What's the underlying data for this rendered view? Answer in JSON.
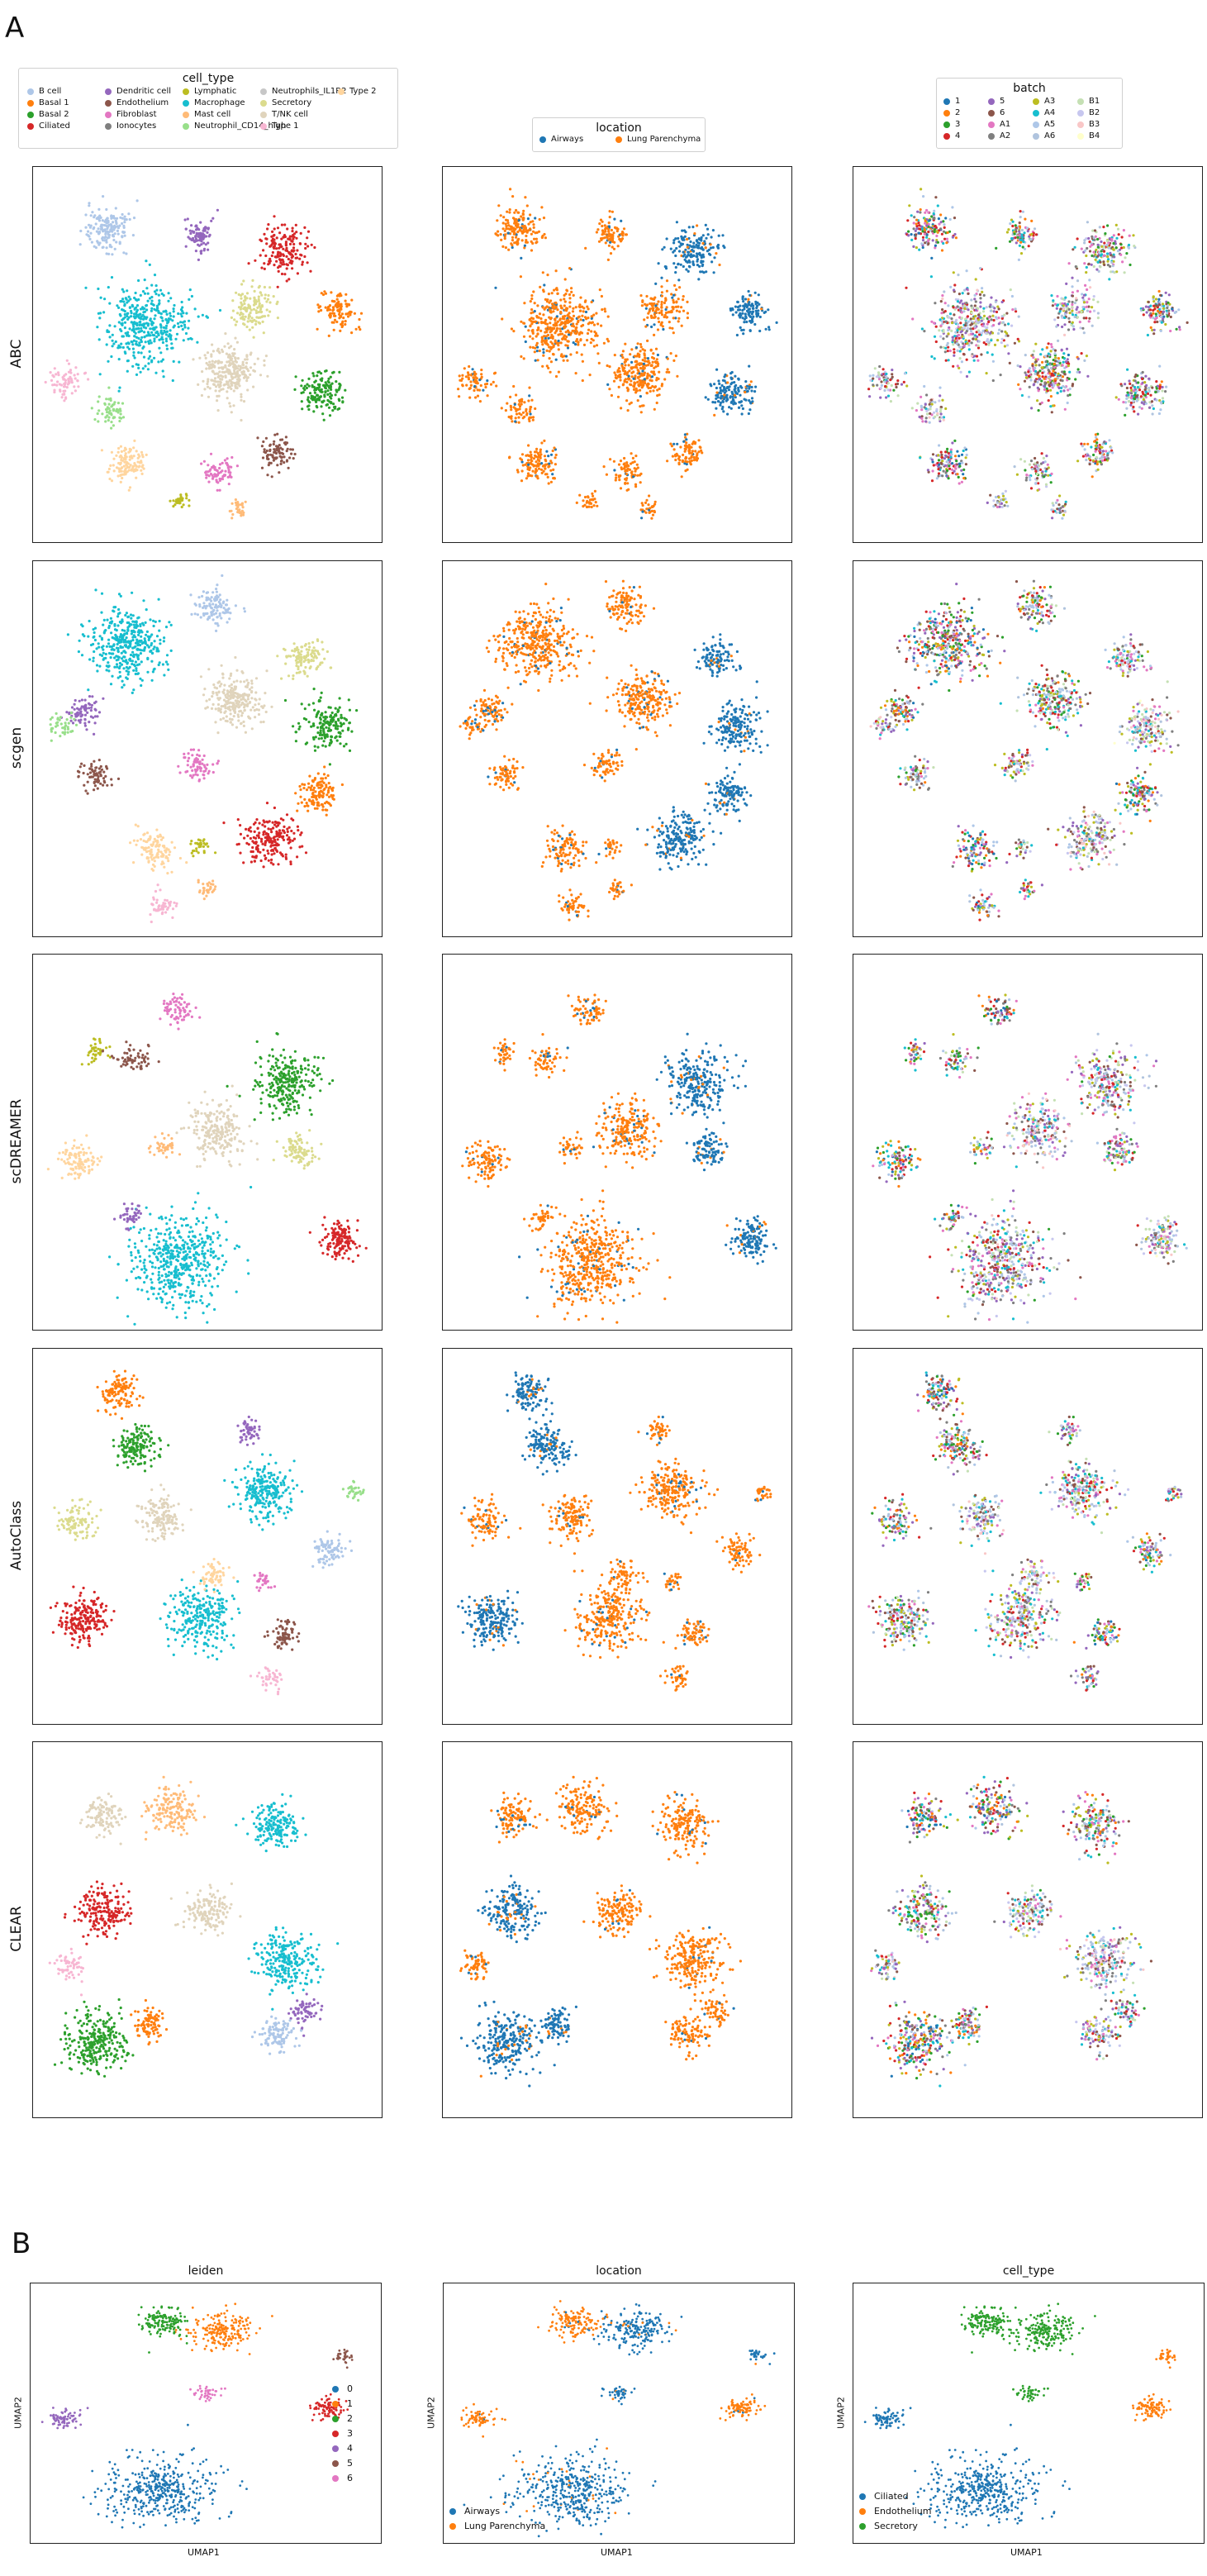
{
  "figure": {
    "panel_a_letter": "A",
    "panel_b_letter": "B"
  },
  "palettes": {
    "cell_type": {
      "B cell": "#aec7e8",
      "Basal 1": "#ff7f0e",
      "Basal 2": "#2ca02c",
      "Ciliated": "#d62728",
      "Dendritic cell": "#9467bd",
      "Endothelium": "#8c564b",
      "Fibroblast": "#e377c2",
      "Ionocytes": "#7f7f7f",
      "Lymphatic": "#bcbd22",
      "Macrophage": "#17becf",
      "Mast cell": "#ffbb78",
      "Neutrophil_CD14_high": "#98df8a",
      "Neutrophils_IL1R2": "#c7c7c7",
      "Secretory": "#dbdb8d",
      "T/NK cell": "#e0d4bc",
      "Type 1": "#f7b6d2",
      "Type 2": "#ffd59e"
    },
    "location": {
      "Airways": "#1f77b4",
      "Lung Parenchyma": "#ff7f0e"
    },
    "batch": {
      "1": "#1f77b4",
      "2": "#ff7f0e",
      "3": "#2ca02c",
      "4": "#d62728",
      "5": "#9467bd",
      "6": "#8c564b",
      "A1": "#e377c2",
      "A2": "#7f7f7f",
      "A3": "#bcbd22",
      "A4": "#17becf",
      "A5": "#aec7e8",
      "A6": "#b0c4de",
      "B1": "#c5e0b4",
      "B2": "#c7c7ef",
      "B3": "#f9c7c7",
      "B4": "#ffffcc"
    }
  },
  "legends": {
    "cell_type": {
      "title": "cell_type",
      "items": [
        "B cell",
        "Basal 1",
        "Basal 2",
        "Ciliated",
        "Dendritic cell",
        "Endothelium",
        "Fibroblast",
        "Ionocytes",
        "Lymphatic",
        "Macrophage",
        "Mast cell",
        "Neutrophil_CD14_high",
        "Neutrophils_IL1R2",
        "Secretory",
        "T/NK cell",
        "Type 1",
        "Type 2"
      ]
    },
    "location": {
      "title": "location",
      "items": [
        "Airways",
        "Lung Parenchyma"
      ]
    },
    "batch": {
      "title": "batch",
      "items": [
        "1",
        "2",
        "3",
        "4",
        "5",
        "6",
        "A1",
        "A2",
        "A3",
        "A4",
        "A5",
        "A6",
        "B1",
        "B2",
        "B3",
        "B4"
      ]
    }
  },
  "row_labels": [
    "ABC",
    "scgen",
    "scDREAMER",
    "AutoClass",
    "CLEAR"
  ],
  "panel_b": {
    "titles": [
      "leiden",
      "location",
      "cell_type"
    ],
    "xlabel": "UMAP1",
    "ylabel": "UMAP2",
    "leiden_legend": [
      "0",
      "1",
      "2",
      "3",
      "4",
      "5",
      "6"
    ],
    "leiden_colors": [
      "#1f77b4",
      "#ff7f0e",
      "#2ca02c",
      "#d62728",
      "#9467bd",
      "#8c564b",
      "#e377c2"
    ],
    "location_legend": [
      "Airways",
      "Lung Parenchyma"
    ],
    "location_colors": [
      "#1f77b4",
      "#ff7f0e"
    ],
    "celltype_legend": [
      "Ciliated",
      "Endothelium",
      "Secretory"
    ],
    "celltype_colors": [
      "#1f77b4",
      "#ff7f0e",
      "#2ca02c"
    ]
  },
  "chart_data": [
    {
      "type": "scatter",
      "title": "",
      "description_panel": "A",
      "grid": false,
      "rows": [
        "ABC",
        "scgen",
        "scDREAMER",
        "AutoClass",
        "CLEAR"
      ],
      "columns": [
        "cell_type",
        "location",
        "batch"
      ],
      "series": [
        {
          "name": "ABC",
          "clusters": [
            {
              "cell_type": "B cell",
              "location": "Lung Parenchyma",
              "x": 0.22,
              "y": 0.84,
              "r": 0.07,
              "n": 160
            },
            {
              "cell_type": "Dendritic cell",
              "location": "Lung Parenchyma",
              "x": 0.48,
              "y": 0.82,
              "r": 0.05,
              "n": 90
            },
            {
              "cell_type": "Ciliated",
              "location": "Airways",
              "x": 0.72,
              "y": 0.78,
              "r": 0.08,
              "n": 170
            },
            {
              "cell_type": "Macrophage",
              "location": "Lung Parenchyma",
              "x": 0.33,
              "y": 0.58,
              "r": 0.13,
              "n": 420
            },
            {
              "cell_type": "Secretory",
              "location": "Lung Parenchyma",
              "x": 0.63,
              "y": 0.62,
              "r": 0.07,
              "n": 130
            },
            {
              "cell_type": "Basal 1",
              "location": "Airways",
              "x": 0.88,
              "y": 0.62,
              "r": 0.06,
              "n": 110
            },
            {
              "cell_type": "T/NK cell",
              "location": "Lung Parenchyma",
              "x": 0.56,
              "y": 0.45,
              "r": 0.09,
              "n": 260
            },
            {
              "cell_type": "Basal 2",
              "location": "Airways",
              "x": 0.83,
              "y": 0.4,
              "r": 0.07,
              "n": 150
            },
            {
              "cell_type": "Type 1",
              "location": "Lung Parenchyma",
              "x": 0.09,
              "y": 0.43,
              "r": 0.05,
              "n": 70
            },
            {
              "cell_type": "Neutrophil_CD14_high",
              "location": "Lung Parenchyma",
              "x": 0.22,
              "y": 0.35,
              "r": 0.05,
              "n": 60
            },
            {
              "cell_type": "Type 2",
              "location": "Lung Parenchyma",
              "x": 0.27,
              "y": 0.21,
              "r": 0.06,
              "n": 120
            },
            {
              "cell_type": "Endothelium",
              "location": "Lung Parenchyma",
              "x": 0.7,
              "y": 0.24,
              "r": 0.05,
              "n": 90
            },
            {
              "cell_type": "Fibroblast",
              "location": "Lung Parenchyma",
              "x": 0.53,
              "y": 0.19,
              "r": 0.05,
              "n": 70
            },
            {
              "cell_type": "Lymphatic",
              "location": "Lung Parenchyma",
              "x": 0.42,
              "y": 0.11,
              "r": 0.03,
              "n": 30
            },
            {
              "cell_type": "Mast cell",
              "location": "Lung Parenchyma",
              "x": 0.59,
              "y": 0.09,
              "r": 0.03,
              "n": 30
            }
          ]
        },
        {
          "name": "scgen",
          "clusters": [
            {
              "cell_type": "Macrophage",
              "location": "Lung Parenchyma",
              "x": 0.27,
              "y": 0.78,
              "r": 0.12,
              "n": 380
            },
            {
              "cell_type": "B cell",
              "location": "Lung Parenchyma",
              "x": 0.52,
              "y": 0.88,
              "r": 0.06,
              "n": 110
            },
            {
              "cell_type": "T/NK cell",
              "location": "Lung Parenchyma",
              "x": 0.58,
              "y": 0.63,
              "r": 0.09,
              "n": 240
            },
            {
              "cell_type": "Secretory",
              "location": "Airways",
              "x": 0.78,
              "y": 0.74,
              "r": 0.06,
              "n": 110
            },
            {
              "cell_type": "Basal 2",
              "location": "Airways",
              "x": 0.84,
              "y": 0.56,
              "r": 0.08,
              "n": 170
            },
            {
              "cell_type": "Basal 1",
              "location": "Airways",
              "x": 0.82,
              "y": 0.38,
              "r": 0.06,
              "n": 120
            },
            {
              "cell_type": "Dendritic cell",
              "location": "Lung Parenchyma",
              "x": 0.14,
              "y": 0.6,
              "r": 0.05,
              "n": 80
            },
            {
              "cell_type": "Endothelium",
              "location": "Lung Parenchyma",
              "x": 0.18,
              "y": 0.43,
              "r": 0.05,
              "n": 70
            },
            {
              "cell_type": "Fibroblast",
              "location": "Lung Parenchyma",
              "x": 0.47,
              "y": 0.46,
              "r": 0.05,
              "n": 70
            },
            {
              "cell_type": "Ciliated",
              "location": "Airways",
              "x": 0.68,
              "y": 0.26,
              "r": 0.09,
              "n": 200
            },
            {
              "cell_type": "Type 2",
              "location": "Lung Parenchyma",
              "x": 0.35,
              "y": 0.23,
              "r": 0.06,
              "n": 110
            },
            {
              "cell_type": "Type 1",
              "location": "Lung Parenchyma",
              "x": 0.37,
              "y": 0.08,
              "r": 0.04,
              "n": 50
            },
            {
              "cell_type": "Mast cell",
              "location": "Lung Parenchyma",
              "x": 0.5,
              "y": 0.13,
              "r": 0.03,
              "n": 30
            },
            {
              "cell_type": "Lymphatic",
              "location": "Lung Parenchyma",
              "x": 0.48,
              "y": 0.24,
              "r": 0.03,
              "n": 30
            },
            {
              "cell_type": "Neutrophil_CD14_high",
              "location": "Lung Parenchyma",
              "x": 0.08,
              "y": 0.56,
              "r": 0.04,
              "n": 40
            }
          ]
        },
        {
          "name": "scDREAMER",
          "clusters": [
            {
              "cell_type": "Fibroblast",
              "location": "Lung Parenchyma",
              "x": 0.42,
              "y": 0.85,
              "r": 0.05,
              "n": 70
            },
            {
              "cell_type": "Lymphatic",
              "location": "Lung Parenchyma",
              "x": 0.18,
              "y": 0.74,
              "r": 0.04,
              "n": 40
            },
            {
              "cell_type": "Endothelium",
              "location": "Lung Parenchyma",
              "x": 0.29,
              "y": 0.72,
              "r": 0.05,
              "n": 60
            },
            {
              "cell_type": "Basal 2",
              "location": "Airways",
              "x": 0.73,
              "y": 0.66,
              "r": 0.1,
              "n": 260
            },
            {
              "cell_type": "T/NK cell",
              "location": "Lung Parenchyma",
              "x": 0.53,
              "y": 0.53,
              "r": 0.09,
              "n": 220
            },
            {
              "cell_type": "Type 2",
              "location": "Lung Parenchyma",
              "x": 0.13,
              "y": 0.45,
              "r": 0.06,
              "n": 110
            },
            {
              "cell_type": "Mast cell",
              "location": "Lung Parenchyma",
              "x": 0.37,
              "y": 0.48,
              "r": 0.04,
              "n": 40
            },
            {
              "cell_type": "Secretory",
              "location": "Airways",
              "x": 0.76,
              "y": 0.48,
              "r": 0.06,
              "n": 90
            },
            {
              "cell_type": "Macrophage",
              "location": "Lung Parenchyma",
              "x": 0.42,
              "y": 0.18,
              "r": 0.15,
              "n": 480
            },
            {
              "cell_type": "Ciliated",
              "location": "Airways",
              "x": 0.88,
              "y": 0.24,
              "r": 0.06,
              "n": 140
            },
            {
              "cell_type": "Dendritic cell",
              "location": "Lung Parenchyma",
              "x": 0.28,
              "y": 0.3,
              "r": 0.04,
              "n": 40
            }
          ]
        },
        {
          "name": "AutoClass",
          "clusters": [
            {
              "cell_type": "Basal 1",
              "location": "Airways",
              "x": 0.25,
              "y": 0.88,
              "r": 0.06,
              "n": 120
            },
            {
              "cell_type": "Basal 2",
              "location": "Airways",
              "x": 0.3,
              "y": 0.74,
              "r": 0.07,
              "n": 150
            },
            {
              "cell_type": "Dendritic cell",
              "location": "Lung Parenchyma",
              "x": 0.62,
              "y": 0.78,
              "r": 0.04,
              "n": 50
            },
            {
              "cell_type": "Macrophage",
              "location": "Lung Parenchyma",
              "x": 0.66,
              "y": 0.62,
              "r": 0.09,
              "n": 240
            },
            {
              "cell_type": "T/NK cell",
              "location": "Lung Parenchyma",
              "x": 0.37,
              "y": 0.55,
              "r": 0.07,
              "n": 140
            },
            {
              "cell_type": "B cell",
              "location": "Lung Parenchyma",
              "x": 0.85,
              "y": 0.46,
              "r": 0.05,
              "n": 80
            },
            {
              "cell_type": "Secretory",
              "location": "Lung Parenchyma",
              "x": 0.12,
              "y": 0.54,
              "r": 0.06,
              "n": 90
            },
            {
              "cell_type": "Ciliated",
              "location": "Airways",
              "x": 0.14,
              "y": 0.28,
              "r": 0.08,
              "n": 200
            },
            {
              "cell_type": "Macrophage",
              "location": "Lung Parenchyma",
              "x": 0.48,
              "y": 0.28,
              "r": 0.1,
              "n": 260
            },
            {
              "cell_type": "Type 2",
              "location": "Lung Parenchyma",
              "x": 0.52,
              "y": 0.4,
              "r": 0.05,
              "n": 60
            },
            {
              "cell_type": "Endothelium",
              "location": "Lung Parenchyma",
              "x": 0.72,
              "y": 0.24,
              "r": 0.05,
              "n": 70
            },
            {
              "cell_type": "Type 1",
              "location": "Lung Parenchyma",
              "x": 0.68,
              "y": 0.12,
              "r": 0.04,
              "n": 40
            },
            {
              "cell_type": "Fibroblast",
              "location": "Lung Parenchyma",
              "x": 0.66,
              "y": 0.38,
              "r": 0.03,
              "n": 30
            },
            {
              "cell_type": "Neutrophil_CD14_high",
              "location": "Lung Parenchyma",
              "x": 0.92,
              "y": 0.62,
              "r": 0.03,
              "n": 30
            }
          ]
        },
        {
          "name": "CLEAR",
          "clusters": [
            {
              "cell_type": "Mast cell",
              "location": "Lung Parenchyma",
              "x": 0.4,
              "y": 0.82,
              "r": 0.08,
              "n": 160
            },
            {
              "cell_type": "Macrophage",
              "location": "Lung Parenchyma",
              "x": 0.7,
              "y": 0.78,
              "r": 0.08,
              "n": 170
            },
            {
              "cell_type": "Ciliated",
              "location": "Airways",
              "x": 0.2,
              "y": 0.55,
              "r": 0.08,
              "n": 190
            },
            {
              "cell_type": "T/NK cell",
              "location": "Lung Parenchyma",
              "x": 0.5,
              "y": 0.55,
              "r": 0.07,
              "n": 150
            },
            {
              "cell_type": "Macrophage",
              "location": "Lung Parenchyma",
              "x": 0.72,
              "y": 0.42,
              "r": 0.1,
              "n": 240
            },
            {
              "cell_type": "Basal 2",
              "location": "Airways",
              "x": 0.18,
              "y": 0.2,
              "r": 0.1,
              "n": 260
            },
            {
              "cell_type": "Basal 1",
              "location": "Airways",
              "x": 0.33,
              "y": 0.25,
              "r": 0.05,
              "n": 90
            },
            {
              "cell_type": "Dendritic cell",
              "location": "Lung Parenchyma",
              "x": 0.78,
              "y": 0.28,
              "r": 0.05,
              "n": 60
            },
            {
              "cell_type": "B cell",
              "location": "Lung Parenchyma",
              "x": 0.7,
              "y": 0.22,
              "r": 0.06,
              "n": 100
            },
            {
              "cell_type": "Type 1",
              "location": "Lung Parenchyma",
              "x": 0.1,
              "y": 0.4,
              "r": 0.05,
              "n": 60
            },
            {
              "cell_type": "T/NK cell",
              "location": "Lung Parenchyma",
              "x": 0.2,
              "y": 0.8,
              "r": 0.06,
              "n": 110
            }
          ]
        }
      ]
    },
    {
      "type": "scatter",
      "description_panel": "B",
      "panels": [
        "leiden",
        "location",
        "cell_type"
      ],
      "xlabel": "UMAP1",
      "ylabel": "UMAP2",
      "clusters": [
        {
          "leiden": "0",
          "location": "Airways",
          "cell_type": "Ciliated",
          "x": 0.37,
          "y": 0.2,
          "r": 0.16,
          "n": 420
        },
        {
          "leiden": "1",
          "location": "Airways",
          "cell_type": "Secretory",
          "x": 0.55,
          "y": 0.82,
          "r": 0.09,
          "n": 200
        },
        {
          "leiden": "2",
          "location": "Lung Parenchyma",
          "cell_type": "Secretory",
          "x": 0.38,
          "y": 0.85,
          "r": 0.07,
          "n": 140
        },
        {
          "leiden": "3",
          "location": "Lung Parenchyma",
          "cell_type": "Endothelium",
          "x": 0.85,
          "y": 0.52,
          "r": 0.05,
          "n": 90
        },
        {
          "leiden": "4",
          "location": "Lung Parenchyma",
          "cell_type": "Ciliated",
          "x": 0.1,
          "y": 0.48,
          "r": 0.05,
          "n": 70
        },
        {
          "leiden": "5",
          "location": "Airways",
          "cell_type": "Endothelium",
          "x": 0.89,
          "y": 0.72,
          "r": 0.03,
          "n": 30
        },
        {
          "leiden": "6",
          "location": "Airways",
          "cell_type": "Secretory",
          "x": 0.5,
          "y": 0.58,
          "r": 0.04,
          "n": 40
        }
      ]
    }
  ]
}
